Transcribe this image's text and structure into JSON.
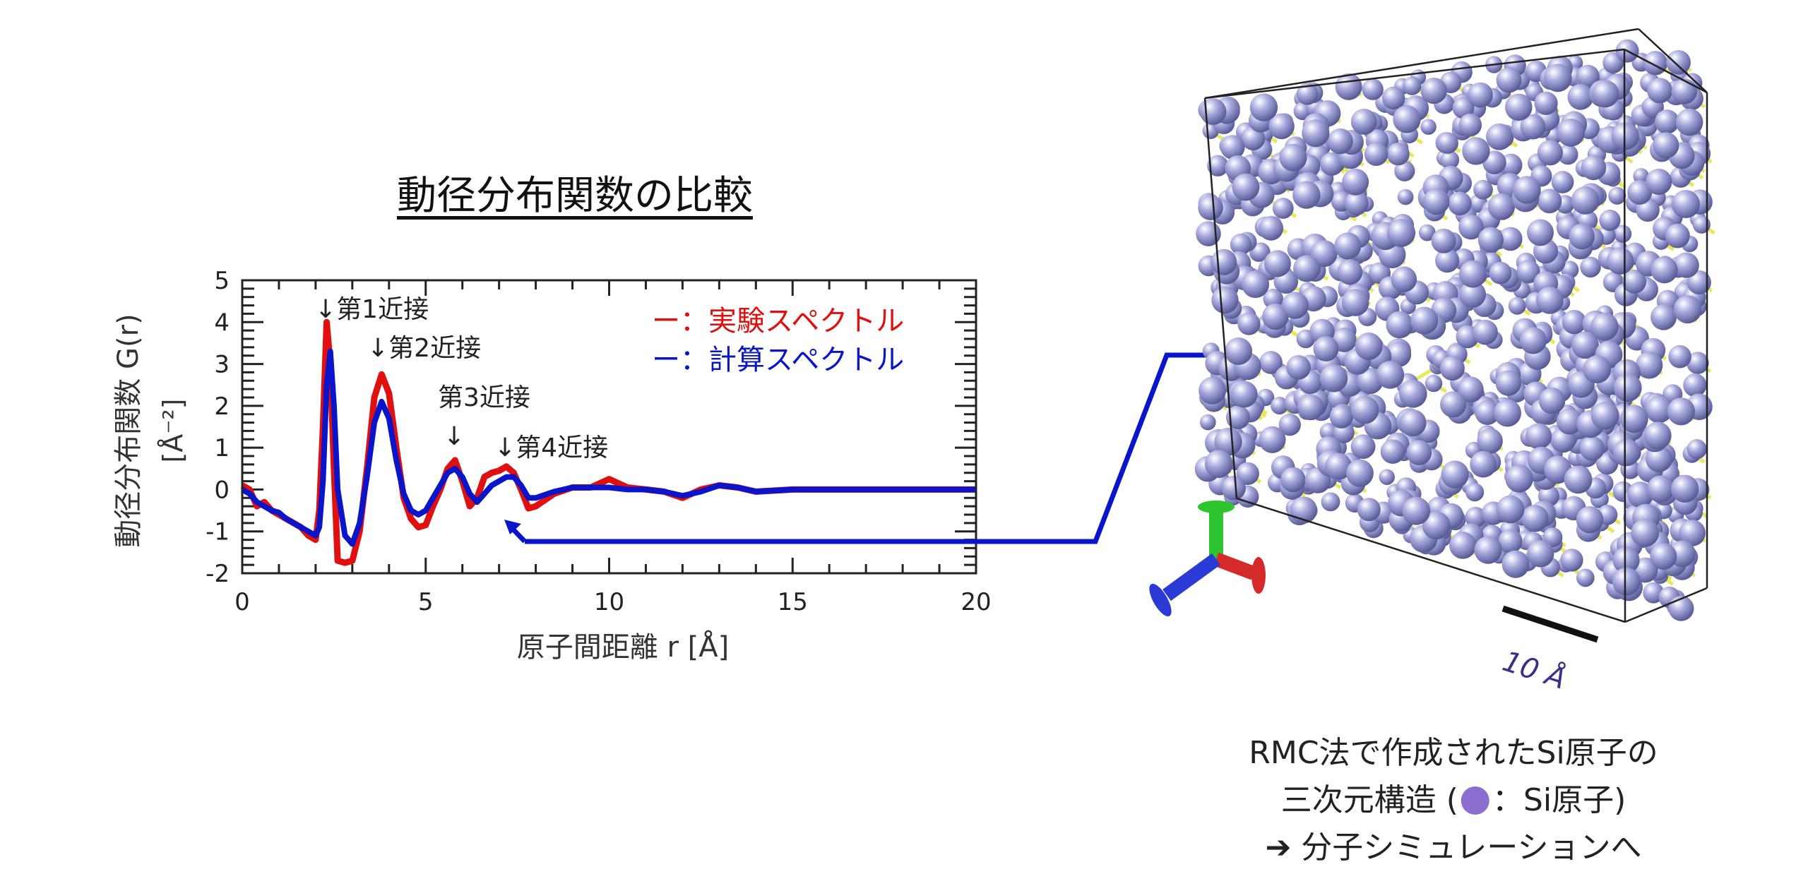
{
  "title": "動径分布関数の比較",
  "chart_data": {
    "type": "line",
    "xlabel": "原子間距離 r [Å]",
    "ylabel_line1": "動径分布関数 G(r)",
    "ylabel_line2": "[Å⁻²]",
    "xlim": [
      0,
      20
    ],
    "ylim": [
      -2,
      5
    ],
    "xticks": [
      "0",
      "5",
      "10",
      "15",
      "20"
    ],
    "yticks": [
      "-2",
      "-1",
      "0",
      "1",
      "2",
      "3",
      "4",
      "5"
    ],
    "grid": false,
    "legend_placement": "top-right",
    "x": [
      0,
      0.2,
      0.4,
      0.6,
      0.8,
      1.0,
      1.2,
      1.4,
      1.6,
      1.8,
      2.0,
      2.1,
      2.2,
      2.3,
      2.4,
      2.5,
      2.6,
      2.8,
      3.0,
      3.2,
      3.4,
      3.6,
      3.8,
      4.0,
      4.2,
      4.4,
      4.6,
      4.8,
      5.0,
      5.2,
      5.4,
      5.6,
      5.8,
      6.0,
      6.2,
      6.4,
      6.6,
      6.8,
      7.0,
      7.2,
      7.4,
      7.6,
      7.8,
      8.0,
      8.5,
      9,
      9.5,
      10,
      10.5,
      11,
      11.5,
      12,
      12.5,
      13,
      13.5,
      14,
      15,
      16,
      17,
      18,
      19,
      20
    ],
    "series": [
      {
        "name": "実験スペクトル",
        "color": "#e01010",
        "values": [
          0.1,
          0,
          -0.4,
          -0.3,
          -0.5,
          -0.6,
          -0.7,
          -0.8,
          -0.9,
          -1.1,
          -1.2,
          -0.5,
          1.5,
          4.0,
          3.0,
          0.5,
          -1.7,
          -1.75,
          -1.7,
          -1.0,
          0.5,
          2.2,
          2.75,
          2.3,
          1.0,
          -0.2,
          -0.7,
          -0.9,
          -0.85,
          -0.4,
          0,
          0.5,
          0.7,
          0.2,
          -0.4,
          -0.2,
          0.3,
          0.4,
          0.45,
          0.55,
          0.4,
          0.0,
          -0.45,
          -0.4,
          -0.1,
          0.05,
          0.05,
          0.25,
          0.05,
          0,
          -0.05,
          -0.2,
          0.0,
          0.1,
          0.05,
          -0.05,
          0,
          0,
          0,
          0,
          0,
          0
        ]
      },
      {
        "name": "計算スペクトル",
        "color": "#0a14c8",
        "values": [
          0.0,
          -0.1,
          -0.3,
          -0.4,
          -0.5,
          -0.55,
          -0.7,
          -0.8,
          -0.9,
          -1.0,
          -1.1,
          -0.9,
          0.2,
          2.5,
          3.3,
          2.0,
          0.0,
          -1.1,
          -1.3,
          -0.8,
          0.3,
          1.6,
          2.1,
          1.7,
          0.7,
          -0.1,
          -0.5,
          -0.6,
          -0.5,
          -0.2,
          0.1,
          0.4,
          0.5,
          0.3,
          -0.1,
          -0.3,
          -0.1,
          0.1,
          0.2,
          0.3,
          0.3,
          0.1,
          -0.2,
          -0.2,
          -0.05,
          0.05,
          0.05,
          0.05,
          0.0,
          0,
          -0.05,
          -0.15,
          -0.05,
          0.1,
          0.05,
          -0.05,
          0,
          0,
          0,
          0,
          0,
          0
        ]
      }
    ],
    "legend": [
      {
        "marker": "ー",
        "sep": "：",
        "label": "実験スペクトル",
        "color": "#e01010"
      },
      {
        "marker": "ー",
        "sep": "：",
        "label": "計算スペクトル",
        "color": "#0a14c8"
      }
    ],
    "annotations": [
      {
        "text": "↓第1近接",
        "x": 2.3
      },
      {
        "text": "↓第2近接",
        "x": 3.8
      },
      {
        "text": "第3近接",
        "x": 5.7
      },
      {
        "text": "↓",
        "x": 5.7
      },
      {
        "text": "↓第4近接",
        "x": 7.2
      }
    ]
  },
  "structure": {
    "scale_bar_label": "10 Å",
    "atom_color": "#a6a8dc",
    "bond_color": "#e8e85a",
    "axis_colors": {
      "x": "#d42a2a",
      "y": "#2ec42e",
      "z": "#2a3ad4"
    }
  },
  "caption": {
    "line1": "RMC法で作成されたSi原子の",
    "line2_pre": "三次元構造 (",
    "line2_post": "：Si原子)",
    "line3": "➔ 分子シミュレーションへ",
    "dot_color": "#8a6fd0"
  },
  "connector_color": "#0a14c8"
}
